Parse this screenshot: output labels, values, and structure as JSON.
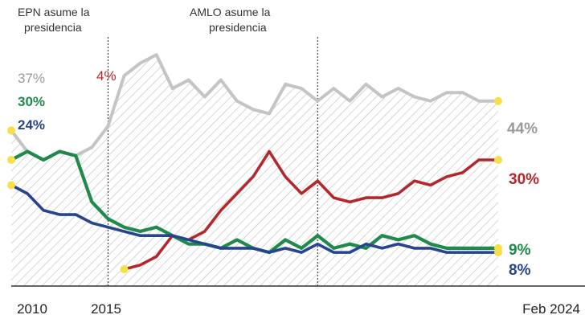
{
  "chart_data": {
    "type": "line",
    "x": [
      2009.0,
      2009.5,
      2010.0,
      2010.5,
      2011.0,
      2011.5,
      2012.0,
      2012.5,
      2013.0,
      2013.5,
      2014.0,
      2014.5,
      2015.0,
      2015.5,
      2016.0,
      2016.5,
      2017.0,
      2017.5,
      2018.0,
      2018.5,
      2019.0,
      2019.5,
      2020.0,
      2020.5,
      2021.0,
      2021.5,
      2022.0,
      2022.5,
      2023.0,
      2023.5,
      2024.1
    ],
    "series": [
      {
        "color": "#c4c4c4",
        "values": [
          37,
          32,
          30,
          32,
          31,
          33,
          38,
          50,
          53,
          55,
          47,
          49,
          45,
          49,
          44,
          42,
          41,
          48,
          47,
          44,
          47,
          44,
          48,
          45,
          47,
          45,
          44,
          46,
          46,
          44,
          44
        ],
        "label_start": "37%",
        "label_end": "44%"
      },
      {
        "color": "#b3282d",
        "values": [
          null,
          null,
          null,
          null,
          null,
          null,
          null,
          4,
          5,
          7,
          12,
          11,
          13,
          18,
          22,
          26,
          32,
          26,
          22,
          25,
          21,
          20,
          21,
          21,
          22,
          25,
          24,
          26,
          27,
          30,
          30
        ],
        "label_start": "4%",
        "label_end": "30%"
      },
      {
        "color": "#1f8a4c",
        "values": [
          30,
          32,
          30,
          32,
          31,
          20,
          16,
          14,
          13,
          14,
          12,
          10,
          10,
          9,
          11,
          9,
          8,
          11,
          9,
          12,
          9,
          10,
          9,
          12,
          11,
          12,
          10,
          9,
          9,
          9,
          9
        ],
        "label_start": "30%",
        "label_end": "9%"
      },
      {
        "color": "#27458f",
        "values": [
          24,
          22,
          18,
          17,
          17,
          15,
          14,
          13,
          12,
          12,
          12,
          11,
          10,
          9,
          9,
          9,
          8,
          9,
          8,
          10,
          8,
          8,
          10,
          9,
          10,
          9,
          9,
          8,
          8,
          8,
          8
        ],
        "label_start": "24%",
        "label_end": "8%"
      }
    ],
    "ylim": [
      0,
      60
    ],
    "xlim": [
      2009.0,
      2024.1
    ],
    "grid": false,
    "xticks": [
      {
        "x": 2010.0,
        "label": "2010"
      },
      {
        "x": 2015.5,
        "label": "2015"
      },
      {
        "x": 2024.1,
        "label": "Feb 2024"
      }
    ],
    "annotations": [
      {
        "x": 2012.0,
        "line1": "EPN asume la",
        "line2": "presidencia"
      },
      {
        "x": 2018.5,
        "line1": "AMLO asume la",
        "line2": "presidencia"
      }
    ]
  }
}
